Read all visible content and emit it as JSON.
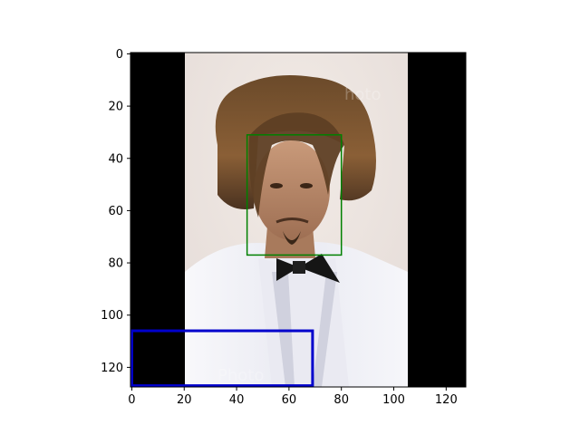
{
  "figure": {
    "x_ticks": [
      "0",
      "20",
      "40",
      "60",
      "80",
      "100",
      "120"
    ],
    "y_ticks": [
      "0",
      "20",
      "40",
      "60",
      "80",
      "100",
      "120"
    ],
    "x_tick_values": [
      0,
      20,
      40,
      60,
      80,
      100,
      120
    ],
    "y_tick_values": [
      0,
      20,
      40,
      60,
      80,
      100,
      120
    ],
    "x_range": [
      -0.5,
      127.5
    ],
    "y_range": [
      127.5,
      -0.5
    ],
    "image": {
      "description_tag": "portrait-photo",
      "left_black_band_end": 20,
      "right_black_band_start": 106,
      "background_color": "#000000"
    },
    "boxes": [
      {
        "name": "face-box",
        "color": "#008000",
        "x0": 44,
        "y0": 31,
        "x1": 80,
        "y1": 77
      },
      {
        "name": "lower-region-box",
        "color": "#0000cc",
        "x0": 0,
        "y0": 106,
        "x1": 69,
        "y1": 127
      }
    ]
  }
}
